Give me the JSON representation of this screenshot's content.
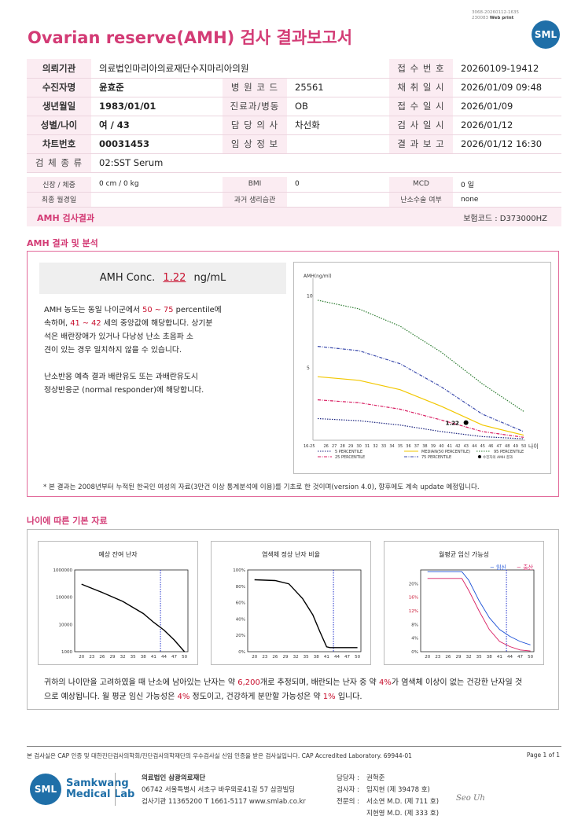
{
  "header": {
    "title": "Ovarian reserve(AMH) 검사 결과보고서",
    "meta_line1": "3068-20260112-1635",
    "meta_line2": "230083",
    "meta_web": "Web print",
    "logo": "SML"
  },
  "patient": {
    "rows": [
      {
        "l1": "의뢰기관",
        "v1": "의료법인마리아의료재단수지마리아의원",
        "l3": "접 수 번 호",
        "v3": "20260109-19412"
      },
      {
        "l1": "수진자명",
        "v1": "윤효준",
        "l2": "병 원 코 드",
        "v2": "25561",
        "l3": "채 취 일 시",
        "v3": "2026/01/09 09:48"
      },
      {
        "l1": "생년월일",
        "v1": "1983/01/01",
        "l2": "진료과/병동",
        "v2": "OB",
        "l3": "접 수 일 시",
        "v3": "2026/01/09"
      },
      {
        "l1": "성별/나이",
        "v1": "여 / 43",
        "l2": "담 당 의 사",
        "v2": "차선화",
        "l3": "검 사 일 시",
        "v3": "2026/01/12"
      },
      {
        "l1": "차트번호",
        "v1": "00031453",
        "l2": "임 상 정 보",
        "v2": "",
        "l3": "결 과 보 고",
        "v3": "2026/01/12 16:30"
      }
    ],
    "specimen_label": "검 체 종 류",
    "specimen_value": "02:SST Serum",
    "height_label": "신장 / 체중",
    "height_value": "0 cm / 0 kg",
    "bmi_label": "BMI",
    "bmi_value": "0",
    "mcd_label": "MCD",
    "mcd_value": "0 일",
    "lmp_label": "최종 월경일",
    "lmp_value": "",
    "history_label": "과거 생리습관",
    "history_value": "",
    "surgery_label": "난소수술 여부",
    "surgery_value": "none"
  },
  "result_band": {
    "label": "AMH 검사결과",
    "insurance": "보험코드 : D373000HZ"
  },
  "analysis": {
    "section_title": "AMH 결과 및 분석",
    "conc_label": "AMH Conc.",
    "conc_value": "1.22",
    "conc_unit": "ng/mL",
    "p1_a": "AMH 농도는 동일 나이군에서 ",
    "p1_pct": "50 ~ 75",
    "p1_b": " percentile에",
    "p2_a": "속하며, ",
    "p2_age": "41 ~ 42",
    "p2_b": " 세의 중앙값에 해당합니다. 상기분",
    "p3": "석은 배란장애가 있거나 다낭성 난소 초음파 소",
    "p4": "견이 있는 경우 일치하지 않을 수 있습니다.",
    "p5": "난소반응 예측 결과 배란유도 또는 과배란유도시",
    "p6": "정상반응군 (normal responder)에 해당합니다.",
    "footnote": "* 본 결과는 2008년부터 누적된 한국인 여성의 자료(3만건 이상 통계분석에 이용)를 기초로 한 것이며(version 4.0), 향후에도 계속 update 예정입니다."
  },
  "chart_data": [
    {
      "type": "line",
      "ylabel": "AMH(ng/ml)",
      "xlabel": "나이",
      "x_ticks": [
        "16-25",
        "26",
        "27",
        "28",
        "29",
        "30",
        "31",
        "32",
        "33",
        "34",
        "35",
        "36",
        "37",
        "38",
        "39",
        "40",
        "41",
        "42",
        "43",
        "44",
        "45",
        "46",
        "47",
        "48",
        "49",
        "50"
      ],
      "yticks": [
        5,
        10
      ],
      "ylim": [
        0,
        11
      ],
      "x": [
        25,
        30,
        35,
        40,
        45,
        50
      ],
      "series": [
        {
          "name": "5 PERCENTILE",
          "color": "#1a237e",
          "values": [
            1.5,
            1.35,
            1.05,
            0.6,
            0.25,
            0.1
          ]
        },
        {
          "name": "25 PERCENTILE",
          "color": "#d81b60",
          "values": [
            2.8,
            2.6,
            2.15,
            1.4,
            0.6,
            0.2
          ]
        },
        {
          "name": "MEDIAN(50 PERCENTILE)",
          "color": "#f2c700",
          "values": [
            4.4,
            4.15,
            3.5,
            2.35,
            1.05,
            0.35
          ]
        },
        {
          "name": "75 PERCENTILE",
          "color": "#3949ab",
          "values": [
            6.5,
            6.2,
            5.3,
            3.7,
            1.8,
            0.6
          ]
        },
        {
          "name": "95 PERCENTILE",
          "color": "#2e7d32",
          "values": [
            9.7,
            9.1,
            7.9,
            6.1,
            3.9,
            2.0
          ]
        }
      ],
      "marker": {
        "name": "수진자의 AMH 결과",
        "x": 43,
        "y": 1.22,
        "label": "1.22"
      }
    },
    {
      "type": "line",
      "title": "예상 잔여 난자",
      "x_ticks": [
        "20",
        "23",
        "26",
        "29",
        "32",
        "35",
        "38",
        "41",
        "44",
        "47",
        "50"
      ],
      "y_ticks": [
        "1000",
        "10000",
        "100000",
        "1000000"
      ],
      "ylog": true,
      "ylim": [
        1000,
        1000000
      ],
      "x": [
        20,
        26,
        32,
        38,
        41,
        44,
        47,
        50
      ],
      "values": [
        300000,
        150000,
        70000,
        25000,
        12000,
        6200,
        2700,
        1000
      ],
      "marker_x": 43
    },
    {
      "type": "line",
      "title": "염색체 정상 난자 비율",
      "x_ticks": [
        "20",
        "23",
        "26",
        "29",
        "32",
        "35",
        "38",
        "41",
        "44",
        "47",
        "50"
      ],
      "y_ticks": [
        "0%",
        "20%",
        "40%",
        "60%",
        "80%",
        "100%"
      ],
      "ylim": [
        0,
        100
      ],
      "x": [
        20,
        26,
        30,
        34,
        37,
        39,
        41,
        42,
        50
      ],
      "values": [
        88,
        87,
        83,
        65,
        45,
        25,
        6,
        5,
        5
      ],
      "marker_x": 43
    },
    {
      "type": "line",
      "title": "월평균 임신 가능성",
      "x_ticks": [
        "20",
        "23",
        "26",
        "29",
        "32",
        "35",
        "38",
        "41",
        "44",
        "47",
        "50"
      ],
      "y_ticks": [
        "0%",
        "4%",
        "8%",
        "12%",
        "16%",
        "20%"
      ],
      "y_tick_colors": [
        "#333",
        "#333",
        "#333",
        "#c8102e",
        "#c8102e",
        "#333"
      ],
      "ylim": [
        0,
        24
      ],
      "x": [
        20,
        26,
        30,
        32,
        35,
        38,
        41,
        44,
        47,
        50
      ],
      "series": [
        {
          "name": "임신",
          "color": "#1a4fd6",
          "values": [
            23.5,
            23.5,
            23.5,
            21,
            15,
            10,
            6.5,
            4.5,
            3,
            2
          ]
        },
        {
          "name": "출산",
          "color": "#d81b60",
          "values": [
            21.5,
            21.5,
            21.5,
            18,
            12,
            6.5,
            3,
            1.5,
            0.5,
            0.2
          ]
        }
      ],
      "marker_x": 43
    }
  ],
  "baseline": {
    "section_title": "나이에 따른 기본 자료",
    "summary_1a": "귀하의 나이만을 고려하였을 때 난소에 남아있는 난자는 약 ",
    "summary_1n": "6,200",
    "summary_1b": "개로 추정되며, 배란되는 난자 중 약 ",
    "summary_1p": "4%",
    "summary_1c": "가 염색체 이상이 없는 건강한 난자일 것",
    "summary_2a": "으로 예상됩니다. 월 평균 임신 가능성은 ",
    "summary_2p": "4%",
    "summary_2b": " 정도이고, 건강하게 분만할 가능성은 약 ",
    "summary_2q": "1%",
    "summary_2c": " 입니다."
  },
  "footer": {
    "cert_line": "본 검사실은 CAP 인증 및 대한진단검사의학회/진단검사의학재단의 우수검사실 신임 인증을 받은 검사실입니다.  CAP Accredited Laboratory. 69944-01",
    "page": "Page 1 of 1",
    "logo": "SML",
    "brand1": "Samkwang",
    "brand2": "Medical Lab",
    "org": "의료법인 삼광의료재단",
    "address": "06742 서울특별시 서초구 바우뫼로41길 57 삼광빌딩",
    "contact": "검사기관 11365200  T 1661-5117  www.smlab.co.kr",
    "manager_k": "담당자 :",
    "manager_v": "권혁준",
    "tester_k": "검사자 :",
    "tester_v": "임지현 (제 39478 호)",
    "expert_k": "전문의 :",
    "expert_v1": "서소연 M.D. (제 711 호)",
    "expert_v2": "지현영 M.D. (제 333 호)",
    "signature": "Seo  Uh"
  },
  "colors": {
    "accent": "#d33b75",
    "brand": "#1f6fa8",
    "band": "#fbecf2",
    "value_red": "#c8102e"
  }
}
